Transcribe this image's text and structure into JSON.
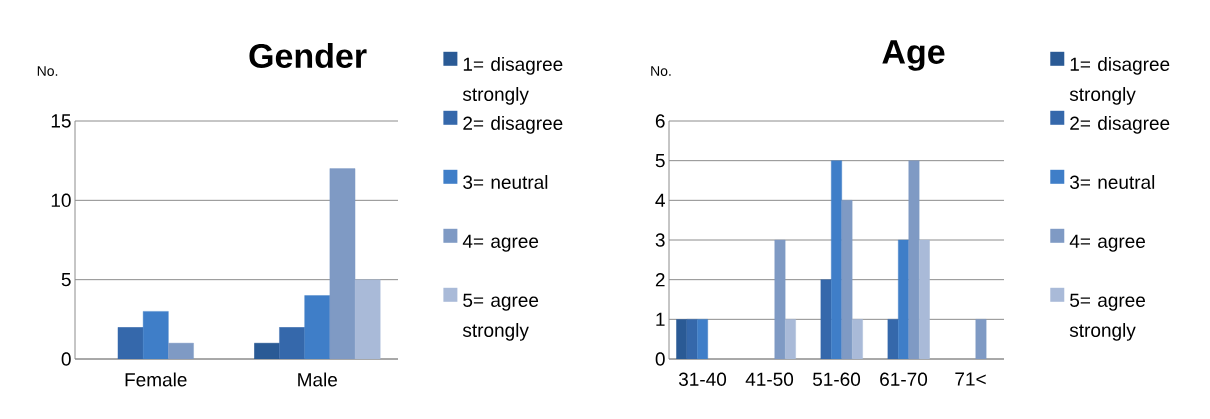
{
  "chart_data": [
    {
      "type": "bar",
      "title": "Gender",
      "ylabel": "No.",
      "categories": [
        "Female",
        "Male"
      ],
      "series": [
        {
          "name": "1= disagree strongly",
          "color": "#2a5a95",
          "values": [
            null,
            1
          ]
        },
        {
          "name": "2= disagree",
          "color": "#3568ab",
          "values": [
            2,
            2
          ]
        },
        {
          "name": "3= neutral",
          "color": "#3f7ec8",
          "values": [
            3,
            4
          ]
        },
        {
          "name": "4= agree",
          "color": "#7f9ac4",
          "values": [
            1,
            12
          ]
        },
        {
          "name": "5= agree strongly",
          "color": "#a9bad8",
          "values": [
            null,
            5
          ]
        }
      ],
      "ylim": [
        0,
        15
      ],
      "yticks": [
        0,
        5,
        10,
        15
      ],
      "grid": "y",
      "legend": "right"
    },
    {
      "type": "bar",
      "title": "Age",
      "ylabel": "No.",
      "categories": [
        "31-40",
        "41-50",
        "51-60",
        "61-70",
        "71<"
      ],
      "series": [
        {
          "name": "1= disagree strongly",
          "color": "#2a5a95",
          "values": [
            1,
            null,
            null,
            null,
            null
          ]
        },
        {
          "name": "2= disagree",
          "color": "#3568ab",
          "values": [
            1,
            null,
            2,
            1,
            null
          ]
        },
        {
          "name": "3= neutral",
          "color": "#3f7ec8",
          "values": [
            1,
            null,
            5,
            3,
            null
          ]
        },
        {
          "name": "4= agree",
          "color": "#7f9ac4",
          "values": [
            null,
            3,
            4,
            5,
            1
          ]
        },
        {
          "name": "5= agree strongly",
          "color": "#a9bad8",
          "values": [
            null,
            1,
            1,
            3,
            null
          ]
        }
      ],
      "ylim": [
        0,
        6
      ],
      "yticks": [
        0,
        1,
        2,
        3,
        4,
        5,
        6
      ],
      "grid": "y",
      "legend": "right"
    }
  ]
}
